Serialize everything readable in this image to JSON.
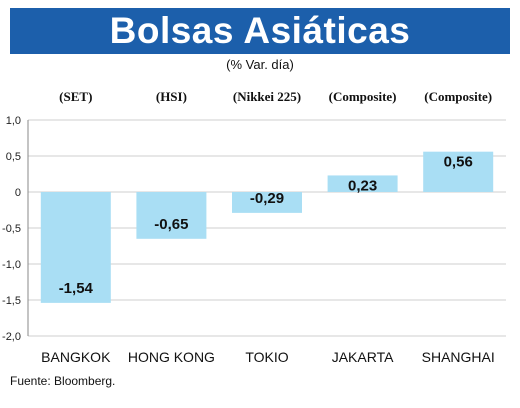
{
  "title": "Bolsas Asiáticas",
  "subtitle": "(% Var. día)",
  "source": "Fuente: Bloomberg.",
  "colors": {
    "title_bg": "#1c5fab",
    "bar": "#a9def4",
    "grid": "#cfcfcf"
  },
  "chart_data": {
    "type": "bar",
    "categories": [
      "BANGKOK",
      "HONG KONG",
      "TOKIO",
      "JAKARTA",
      "SHANGHAI"
    ],
    "indices": [
      "(SET)",
      "(HSI)",
      "(Nikkei 225)",
      "(Composite)",
      "(Composite)"
    ],
    "values": [
      -1.54,
      -0.65,
      -0.29,
      0.23,
      0.56
    ],
    "value_labels": [
      "-1,54",
      "-0,65",
      "-0,29",
      "0,23",
      "0,56"
    ],
    "ylim": [
      -2.0,
      1.0
    ],
    "yticks": [
      1.0,
      0.5,
      0,
      -0.5,
      -1.0,
      -1.5,
      -2.0
    ],
    "ytick_labels": [
      "1,0",
      "0,5",
      "0",
      "-0,5",
      "-1,0",
      "-1,5",
      "-2,0"
    ],
    "grid": true
  }
}
